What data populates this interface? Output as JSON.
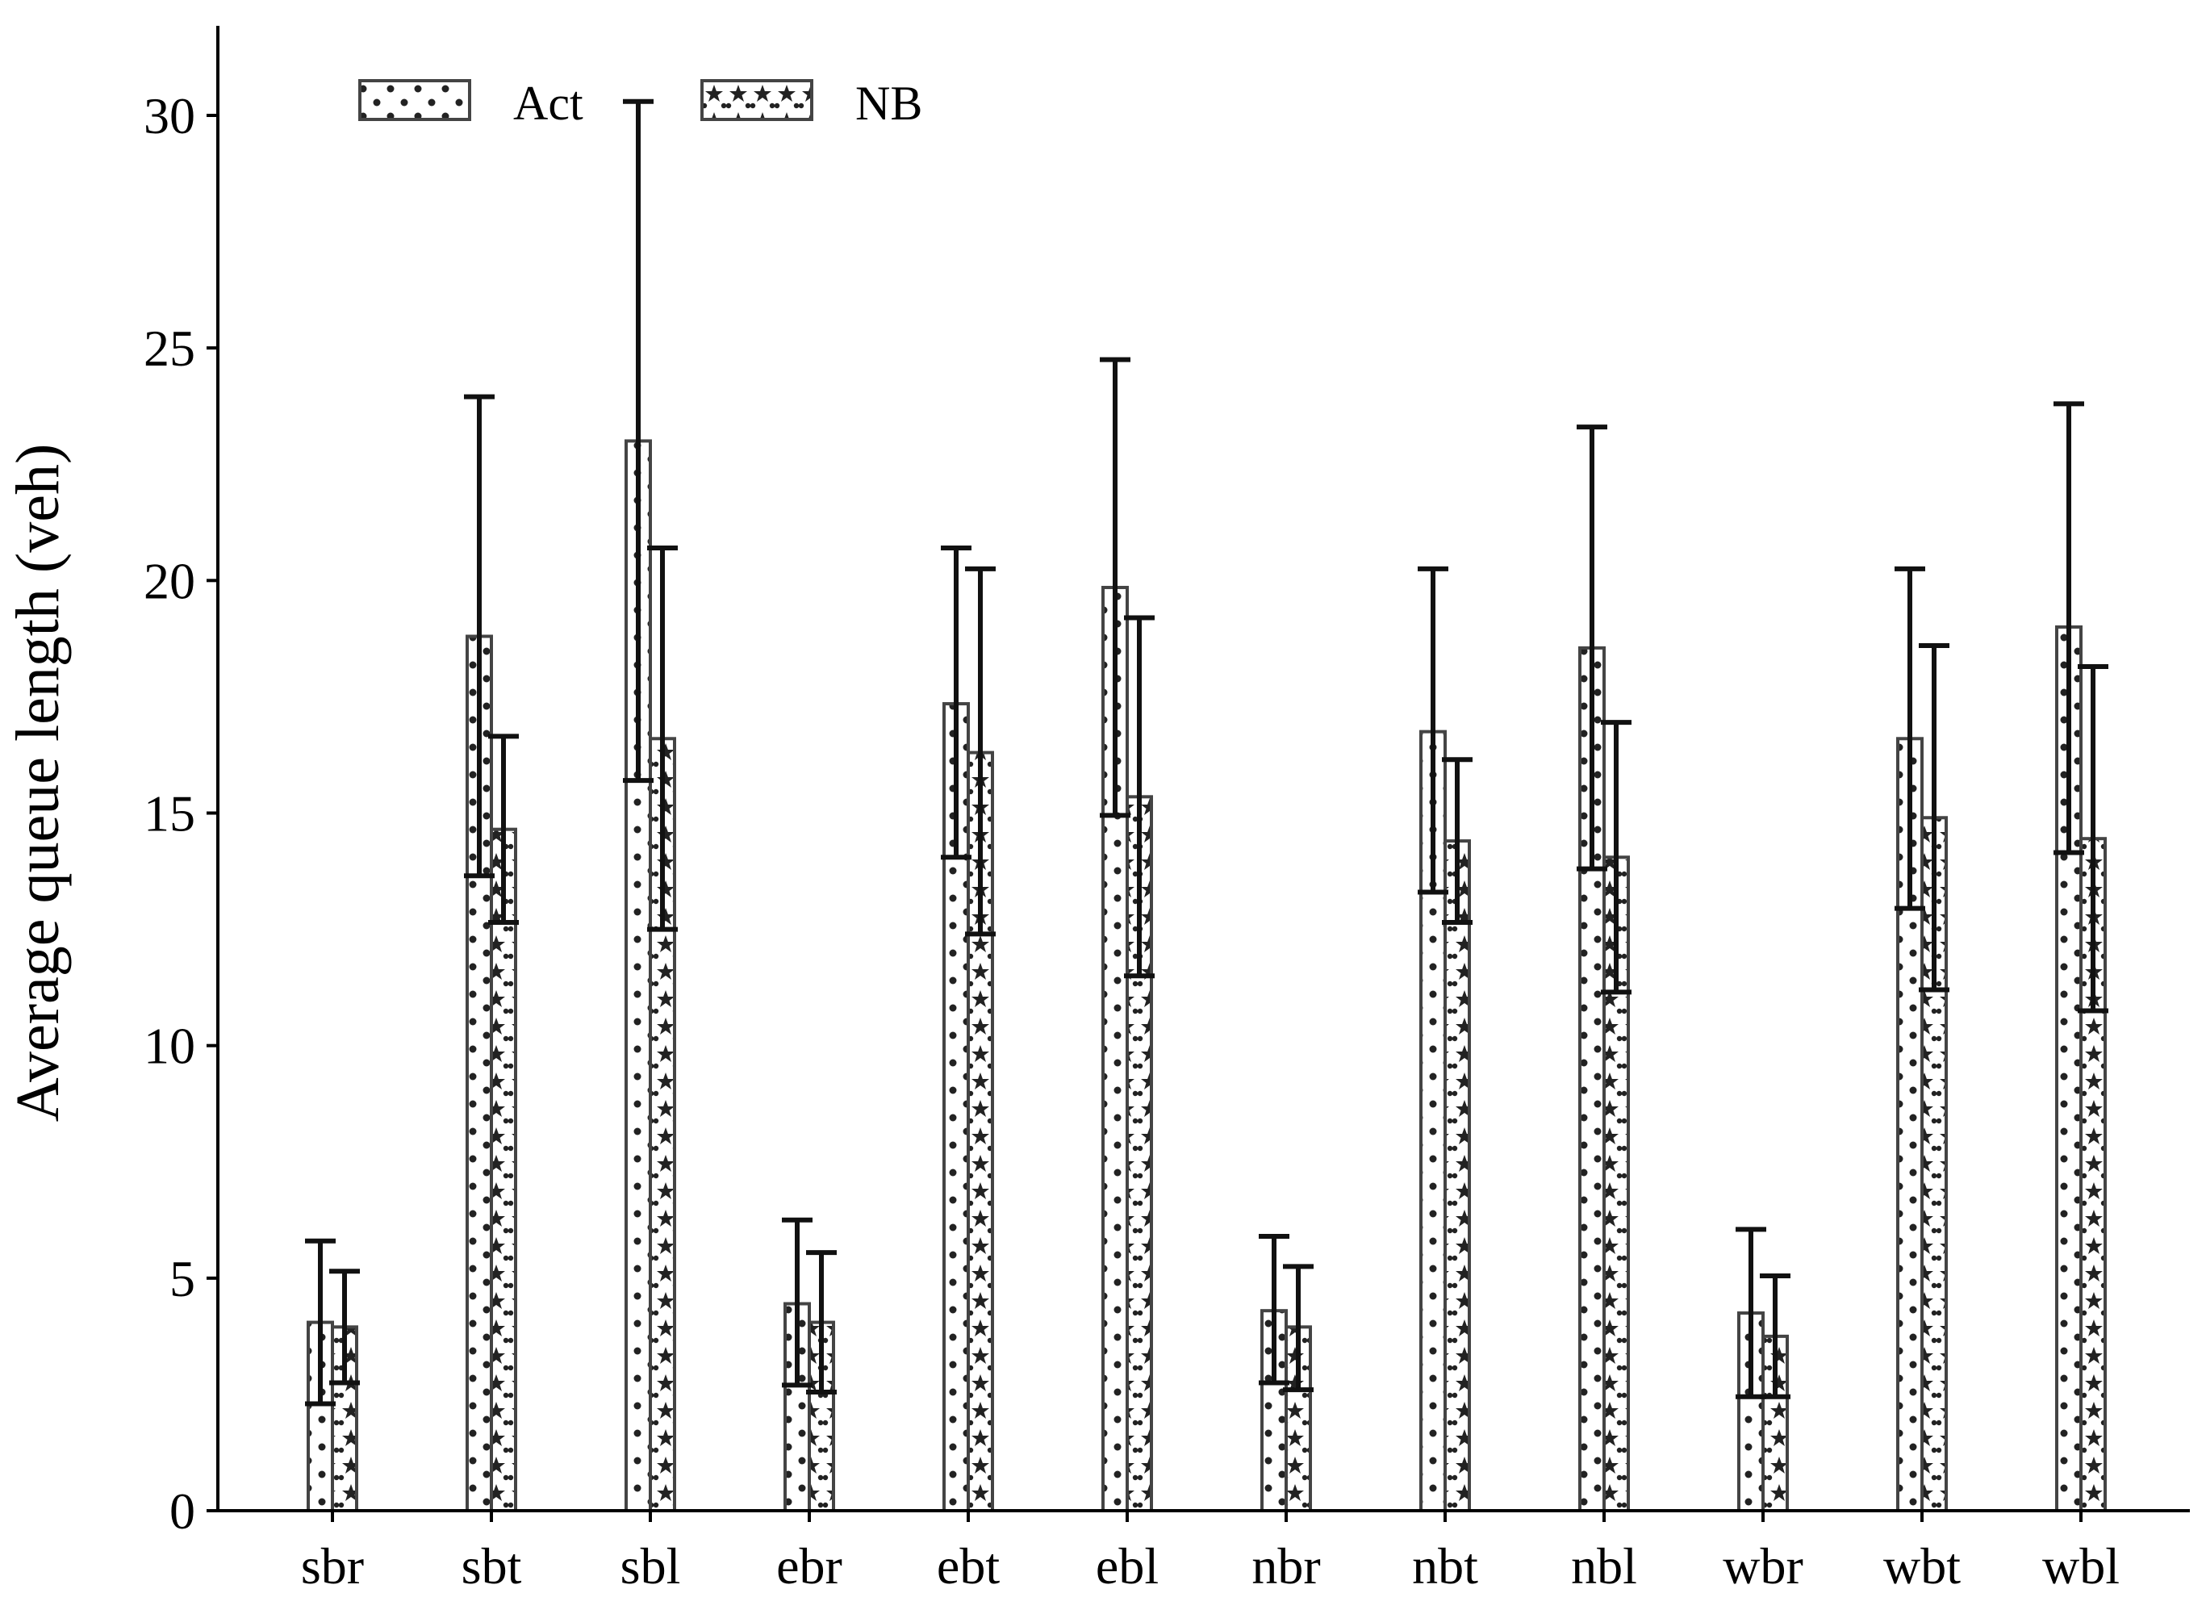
{
  "chart_data": {
    "type": "bar",
    "ylabel": "Average queue length (veh)",
    "xlabel": "",
    "ylim": [
      0,
      32
    ],
    "yticks": [
      0,
      5,
      10,
      15,
      20,
      25,
      30
    ],
    "categories": [
      "sbr",
      "sbt",
      "sbl",
      "ebr",
      "ebt",
      "ebl",
      "nbr",
      "nbt",
      "nbl",
      "wbr",
      "wbt",
      "wbl"
    ],
    "series": [
      {
        "name": "Act",
        "pattern": "dots",
        "values": [
          4.05,
          18.8,
          23.0,
          4.45,
          17.35,
          19.85,
          4.3,
          16.75,
          18.55,
          4.25,
          16.6,
          19.0
        ],
        "error_low": [
          2.3,
          13.65,
          15.7,
          2.7,
          14.05,
          14.95,
          2.75,
          13.3,
          13.8,
          2.45,
          12.95,
          14.15
        ],
        "error_high": [
          5.8,
          23.95,
          30.3,
          6.25,
          20.7,
          24.75,
          5.9,
          20.25,
          23.3,
          6.05,
          20.25,
          23.8
        ]
      },
      {
        "name": "NB",
        "pattern": "stars",
        "values": [
          3.95,
          14.65,
          16.6,
          4.05,
          16.3,
          15.35,
          3.95,
          14.4,
          14.05,
          3.75,
          14.9,
          14.45
        ],
        "error_low": [
          2.75,
          12.65,
          12.5,
          2.55,
          12.4,
          11.5,
          2.6,
          12.65,
          11.15,
          2.45,
          11.2,
          10.75
        ],
        "error_high": [
          5.15,
          16.65,
          20.7,
          5.55,
          20.25,
          19.2,
          5.25,
          16.15,
          16.95,
          5.05,
          18.6,
          18.15
        ]
      }
    ],
    "legend": {
      "placement": "top-left",
      "entries": [
        "Act",
        "NB"
      ]
    },
    "grid": false
  }
}
